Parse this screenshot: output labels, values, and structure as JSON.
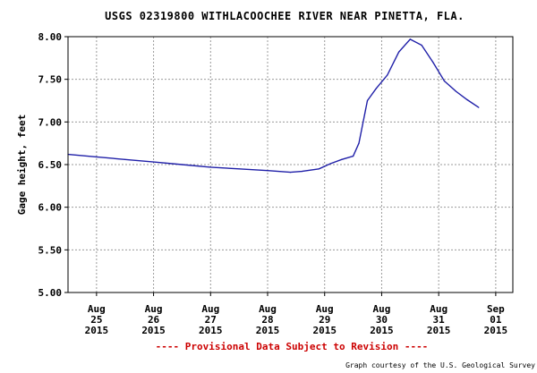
{
  "chart_data": {
    "type": "line",
    "title": "USGS 02319800 WITHLACOOCHEE RIVER NEAR PINETTA, FLA.",
    "ylabel": "Gage height, feet",
    "xlabel": "",
    "ylim": [
      5.0,
      8.0
    ],
    "yticks": [
      "8.00",
      "7.50",
      "7.00",
      "6.50",
      "6.00",
      "5.50",
      "5.00"
    ],
    "xlim": [
      24.5,
      32.3
    ],
    "xticks": [
      {
        "pos": 25,
        "month": "Aug",
        "day": "25",
        "year": "2015"
      },
      {
        "pos": 26,
        "month": "Aug",
        "day": "26",
        "year": "2015"
      },
      {
        "pos": 27,
        "month": "Aug",
        "day": "27",
        "year": "2015"
      },
      {
        "pos": 28,
        "month": "Aug",
        "day": "28",
        "year": "2015"
      },
      {
        "pos": 29,
        "month": "Aug",
        "day": "29",
        "year": "2015"
      },
      {
        "pos": 30,
        "month": "Aug",
        "day": "30",
        "year": "2015"
      },
      {
        "pos": 31,
        "month": "Aug",
        "day": "31",
        "year": "2015"
      },
      {
        "pos": 32,
        "month": "Sep",
        "day": "01",
        "year": "2015"
      }
    ],
    "grid": true,
    "series": [
      {
        "color": "#1f1fa8",
        "points": [
          [
            24.5,
            6.62
          ],
          [
            25.0,
            6.59
          ],
          [
            25.5,
            6.56
          ],
          [
            26.0,
            6.53
          ],
          [
            26.5,
            6.5
          ],
          [
            27.0,
            6.47
          ],
          [
            27.5,
            6.45
          ],
          [
            28.0,
            6.43
          ],
          [
            28.4,
            6.41
          ],
          [
            28.6,
            6.42
          ],
          [
            28.9,
            6.45
          ],
          [
            29.1,
            6.51
          ],
          [
            29.3,
            6.56
          ],
          [
            29.5,
            6.6
          ],
          [
            29.6,
            6.75
          ],
          [
            29.75,
            7.25
          ],
          [
            29.9,
            7.39
          ],
          [
            30.1,
            7.55
          ],
          [
            30.3,
            7.82
          ],
          [
            30.5,
            7.97
          ],
          [
            30.7,
            7.9
          ],
          [
            30.9,
            7.7
          ],
          [
            31.1,
            7.48
          ],
          [
            31.3,
            7.36
          ],
          [
            31.5,
            7.26
          ],
          [
            31.7,
            7.17
          ]
        ]
      }
    ]
  },
  "footer": {
    "provisional": "---- Provisional Data Subject to Revision ----",
    "credit": "Graph courtesy of the U.S. Geological Survey"
  }
}
